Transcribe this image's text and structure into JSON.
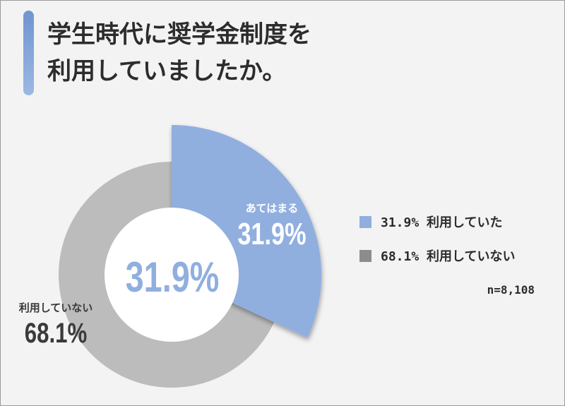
{
  "title": "学生時代に奨学金制度を\n利用していましたか。",
  "colors": {
    "accent": "#90afdf",
    "gray": "#bcbcbc",
    "background": "#f3f3f3"
  },
  "chart_data": {
    "type": "pie",
    "center_label": "31.9%",
    "slices": [
      {
        "value": 31.9,
        "label": "あてはまる",
        "value_text": "31.9%",
        "color": "#90afdf",
        "text_color": "#ffffff"
      },
      {
        "value": 68.1,
        "label": "利用していない",
        "value_text": "68.1%",
        "color": "#bcbcbc",
        "text_color": "#3a3a3a"
      }
    ],
    "legend": [
      {
        "label": "31.9% 利用していた",
        "color": "#90afdf"
      },
      {
        "label": "68.1% 利用していない",
        "color": "#8c8c8c"
      }
    ],
    "note": "n=8,108"
  }
}
